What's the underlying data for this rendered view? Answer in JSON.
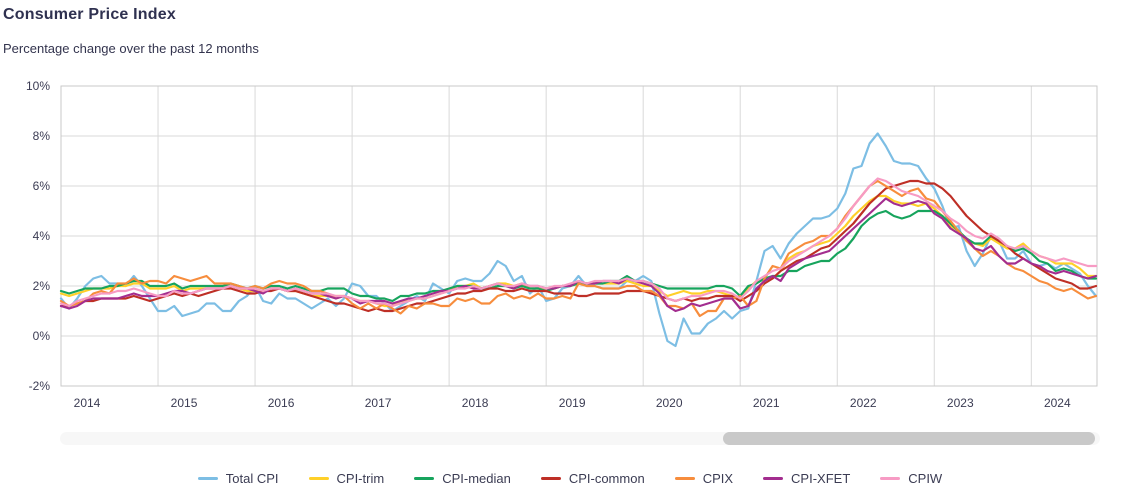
{
  "header": {
    "title": "Consumer Price Index",
    "subtitle": "Percentage change over the past 12 months"
  },
  "chart_data": {
    "type": "line",
    "title": "Consumer Price Index",
    "subtitle": "Percentage change over the past 12 months",
    "frequency": "monthly",
    "x_start": "2014-01",
    "x_end": "2024-09",
    "ylim": [
      -2,
      10
    ],
    "grid": true,
    "legend_position": "bottom",
    "grid_color": "#d9d9d9",
    "border_color": "#c9c9c9",
    "x_ticks": [
      "2014",
      "2015",
      "2016",
      "2017",
      "2018",
      "2019",
      "2020",
      "2021",
      "2022",
      "2023",
      "2024"
    ],
    "y_ticks": [
      {
        "value": 10,
        "label": "10%"
      },
      {
        "value": 8,
        "label": "8%"
      },
      {
        "value": 6,
        "label": "6%"
      },
      {
        "value": 4,
        "label": "4%"
      },
      {
        "value": 2,
        "label": "2%"
      },
      {
        "value": 0,
        "label": "0%"
      },
      {
        "value": -2,
        "label": "-2%"
      }
    ],
    "series": [
      {
        "name": "Total CPI",
        "color": "#7dbee4",
        "values": [
          1.5,
          1.1,
          1.5,
          2.0,
          2.3,
          2.4,
          2.1,
          2.1,
          2.0,
          2.4,
          2.0,
          1.5,
          1.0,
          1.0,
          1.2,
          0.8,
          0.9,
          1.0,
          1.3,
          1.3,
          1.0,
          1.0,
          1.4,
          1.6,
          2.0,
          1.4,
          1.3,
          1.7,
          1.5,
          1.5,
          1.3,
          1.1,
          1.3,
          1.5,
          1.2,
          1.5,
          2.1,
          2.0,
          1.6,
          1.6,
          1.3,
          1.0,
          1.2,
          1.4,
          1.6,
          1.4,
          2.1,
          1.9,
          1.7,
          2.2,
          2.3,
          2.2,
          2.2,
          2.5,
          3.0,
          2.8,
          2.2,
          2.4,
          1.7,
          2.0,
          1.4,
          1.5,
          1.9,
          2.0,
          2.4,
          2.0,
          2.0,
          1.9,
          1.9,
          1.9,
          2.2,
          2.2,
          2.4,
          2.2,
          0.9,
          -0.2,
          -0.4,
          0.7,
          0.1,
          0.1,
          0.5,
          0.7,
          1.0,
          0.7,
          1.0,
          1.1,
          2.2,
          3.4,
          3.6,
          3.1,
          3.7,
          4.1,
          4.4,
          4.7,
          4.7,
          4.8,
          5.1,
          5.7,
          6.7,
          6.8,
          7.7,
          8.1,
          7.6,
          7.0,
          6.9,
          6.9,
          6.8,
          6.3,
          5.9,
          5.2,
          4.3,
          4.4,
          3.4,
          2.8,
          3.3,
          4.0,
          3.8,
          3.1,
          3.1,
          3.4,
          2.9,
          2.8,
          2.9,
          2.7,
          2.9,
          2.7,
          2.5,
          2.0,
          1.6
        ]
      },
      {
        "name": "CPI-trim",
        "color": "#ffd029",
        "values": [
          1.7,
          1.6,
          1.7,
          1.8,
          1.9,
          1.9,
          1.9,
          2.0,
          2.0,
          2.1,
          2.1,
          1.9,
          1.9,
          1.9,
          2.0,
          1.8,
          1.9,
          1.9,
          1.9,
          1.9,
          1.9,
          2.0,
          1.9,
          1.8,
          1.8,
          1.8,
          1.9,
          1.9,
          1.8,
          1.8,
          1.7,
          1.6,
          1.6,
          1.6,
          1.6,
          1.6,
          1.5,
          1.4,
          1.4,
          1.3,
          1.2,
          1.2,
          1.4,
          1.4,
          1.5,
          1.5,
          1.6,
          1.7,
          1.8,
          2.0,
          2.0,
          2.1,
          1.9,
          2.0,
          2.1,
          2.1,
          2.0,
          2.1,
          1.9,
          1.9,
          1.9,
          1.9,
          2.0,
          2.0,
          2.1,
          2.1,
          2.1,
          2.1,
          2.1,
          2.1,
          2.2,
          2.1,
          2.0,
          2.0,
          1.8,
          1.6,
          1.7,
          1.8,
          1.7,
          1.7,
          1.8,
          1.8,
          1.7,
          1.6,
          1.5,
          1.9,
          2.2,
          2.3,
          2.3,
          2.6,
          3.1,
          3.3,
          3.4,
          3.6,
          3.7,
          3.8,
          4.1,
          4.4,
          4.8,
          5.1,
          5.4,
          5.6,
          5.6,
          5.4,
          5.3,
          5.3,
          5.2,
          5.3,
          5.1,
          4.8,
          4.4,
          4.2,
          3.8,
          3.7,
          3.6,
          3.9,
          3.7,
          3.5,
          3.5,
          3.7,
          3.4,
          3.2,
          3.1,
          2.9,
          2.9,
          2.9,
          2.7,
          2.4,
          2.4
        ]
      },
      {
        "name": "CPI-median",
        "color": "#17a45d",
        "values": [
          1.8,
          1.7,
          1.8,
          1.9,
          1.9,
          1.9,
          2.0,
          2.0,
          2.1,
          2.2,
          2.2,
          2.0,
          2.0,
          2.0,
          2.1,
          1.9,
          2.0,
          2.0,
          2.0,
          2.0,
          2.0,
          2.1,
          2.0,
          1.9,
          2.0,
          1.9,
          2.0,
          2.0,
          1.9,
          2.0,
          1.9,
          1.8,
          1.8,
          1.9,
          1.9,
          1.9,
          1.7,
          1.6,
          1.6,
          1.5,
          1.5,
          1.4,
          1.6,
          1.6,
          1.7,
          1.7,
          1.8,
          1.8,
          1.9,
          2.0,
          2.0,
          2.0,
          1.9,
          1.9,
          2.0,
          2.0,
          1.9,
          2.0,
          1.9,
          1.9,
          1.8,
          1.9,
          2.0,
          2.0,
          2.1,
          2.1,
          2.1,
          2.1,
          2.2,
          2.2,
          2.4,
          2.2,
          2.2,
          2.1,
          2.0,
          1.9,
          1.9,
          1.9,
          1.9,
          1.9,
          1.9,
          2.0,
          2.0,
          1.9,
          1.6,
          2.0,
          2.1,
          2.3,
          2.4,
          2.4,
          2.6,
          2.6,
          2.8,
          2.9,
          3.0,
          3.0,
          3.3,
          3.5,
          3.9,
          4.4,
          4.7,
          4.9,
          5.0,
          4.8,
          4.7,
          4.8,
          5.0,
          5.0,
          5.0,
          4.8,
          4.5,
          4.2,
          3.9,
          3.7,
          3.7,
          4.0,
          3.8,
          3.6,
          3.4,
          3.5,
          3.3,
          3.0,
          2.9,
          2.6,
          2.7,
          2.6,
          2.4,
          2.3,
          2.3
        ]
      },
      {
        "name": "CPI-common",
        "color": "#be2f26",
        "values": [
          1.2,
          1.2,
          1.3,
          1.4,
          1.4,
          1.5,
          1.5,
          1.5,
          1.5,
          1.6,
          1.5,
          1.4,
          1.5,
          1.6,
          1.7,
          1.6,
          1.7,
          1.6,
          1.7,
          1.8,
          1.9,
          1.9,
          1.8,
          1.7,
          1.7,
          1.8,
          1.8,
          1.9,
          1.8,
          1.8,
          1.7,
          1.6,
          1.5,
          1.4,
          1.3,
          1.3,
          1.2,
          1.1,
          1.0,
          1.1,
          1.0,
          1.0,
          1.1,
          1.2,
          1.3,
          1.3,
          1.4,
          1.5,
          1.6,
          1.7,
          1.7,
          1.8,
          1.8,
          1.9,
          1.9,
          1.8,
          1.8,
          1.9,
          1.8,
          1.8,
          1.8,
          1.7,
          1.7,
          1.7,
          1.6,
          1.6,
          1.7,
          1.7,
          1.7,
          1.7,
          1.8,
          1.8,
          1.8,
          1.7,
          1.6,
          1.5,
          1.4,
          1.5,
          1.4,
          1.5,
          1.5,
          1.6,
          1.6,
          1.6,
          1.4,
          1.6,
          1.8,
          2.1,
          2.3,
          2.6,
          2.8,
          3.0,
          3.1,
          3.3,
          3.5,
          3.6,
          3.9,
          4.2,
          4.5,
          4.9,
          5.3,
          5.6,
          5.9,
          6.0,
          6.1,
          6.2,
          6.2,
          6.1,
          6.1,
          5.9,
          5.6,
          5.2,
          4.8,
          4.5,
          4.2,
          4.0,
          3.8,
          3.6,
          3.3,
          3.1,
          2.9,
          2.7,
          2.5,
          2.3,
          2.2,
          2.1,
          1.9,
          1.9,
          2.0
        ]
      },
      {
        "name": "CPIX",
        "color": "#f78d3d",
        "values": [
          1.4,
          1.2,
          1.3,
          1.4,
          1.7,
          1.8,
          1.7,
          2.1,
          2.1,
          2.3,
          2.1,
          2.2,
          2.2,
          2.1,
          2.4,
          2.3,
          2.2,
          2.3,
          2.4,
          2.1,
          2.1,
          2.1,
          2.0,
          1.9,
          2.0,
          1.9,
          2.1,
          2.2,
          2.1,
          2.1,
          2.0,
          1.8,
          1.8,
          1.7,
          1.5,
          1.6,
          1.3,
          1.1,
          1.3,
          1.1,
          1.3,
          1.1,
          0.9,
          1.2,
          1.1,
          1.3,
          1.3,
          1.2,
          1.2,
          1.5,
          1.4,
          1.5,
          1.3,
          1.3,
          1.6,
          1.7,
          1.5,
          1.6,
          1.5,
          1.7,
          1.5,
          1.5,
          1.6,
          1.5,
          2.1,
          2.0,
          2.0,
          1.9,
          1.9,
          1.9,
          2.0,
          2.0,
          1.8,
          1.8,
          1.6,
          1.2,
          1.2,
          1.1,
          1.3,
          0.8,
          1.0,
          1.0,
          1.5,
          1.5,
          1.6,
          1.2,
          1.4,
          2.3,
          2.8,
          2.7,
          3.3,
          3.5,
          3.7,
          3.8,
          4.0,
          4.0,
          4.3,
          4.8,
          5.2,
          5.6,
          6.0,
          6.2,
          6.0,
          5.8,
          5.6,
          5.8,
          5.9,
          5.5,
          5.4,
          5.0,
          4.6,
          4.2,
          3.8,
          3.5,
          3.2,
          3.4,
          3.2,
          2.9,
          2.7,
          2.6,
          2.4,
          2.2,
          2.1,
          1.9,
          1.8,
          1.9,
          1.7,
          1.5,
          1.6
        ]
      },
      {
        "name": "CPI-XFET",
        "color": "#a32d8f",
        "values": [
          1.2,
          1.1,
          1.2,
          1.4,
          1.5,
          1.5,
          1.5,
          1.5,
          1.6,
          1.7,
          1.6,
          1.6,
          1.6,
          1.7,
          1.8,
          1.8,
          1.7,
          1.8,
          1.9,
          1.9,
          1.9,
          2.0,
          1.9,
          1.9,
          1.8,
          1.7,
          1.9,
          1.9,
          1.8,
          1.9,
          1.8,
          1.7,
          1.7,
          1.6,
          1.5,
          1.6,
          1.5,
          1.3,
          1.4,
          1.4,
          1.4,
          1.3,
          1.4,
          1.5,
          1.5,
          1.6,
          1.7,
          1.8,
          1.8,
          1.9,
          2.0,
          1.9,
          1.9,
          2.0,
          2.1,
          2.0,
          1.9,
          2.1,
          2.0,
          2.0,
          1.9,
          1.9,
          2.0,
          2.0,
          2.2,
          2.1,
          2.1,
          2.2,
          2.2,
          2.1,
          2.3,
          2.2,
          2.1,
          2.0,
          1.7,
          1.2,
          1.0,
          1.1,
          1.3,
          1.2,
          1.3,
          1.4,
          1.5,
          1.5,
          1.1,
          1.2,
          1.9,
          2.2,
          2.4,
          2.2,
          2.7,
          2.9,
          3.1,
          3.2,
          3.3,
          3.4,
          3.7,
          4.0,
          4.3,
          4.6,
          4.9,
          5.2,
          5.5,
          5.3,
          5.2,
          5.3,
          5.4,
          5.3,
          4.9,
          4.7,
          4.3,
          4.1,
          3.9,
          3.5,
          3.4,
          3.6,
          3.2,
          2.9,
          2.9,
          3.1,
          2.9,
          2.8,
          2.6,
          2.5,
          2.6,
          2.5,
          2.4,
          2.3,
          2.4
        ]
      },
      {
        "name": "CPIW",
        "color": "#f79bc4",
        "values": [
          1.3,
          1.2,
          1.4,
          1.5,
          1.6,
          1.7,
          1.7,
          1.8,
          1.8,
          1.9,
          1.8,
          1.7,
          1.6,
          1.6,
          1.8,
          1.7,
          1.7,
          1.8,
          1.9,
          1.9,
          1.9,
          2.0,
          1.9,
          1.9,
          1.9,
          1.8,
          1.9,
          1.9,
          1.8,
          1.9,
          1.8,
          1.7,
          1.7,
          1.7,
          1.6,
          1.6,
          1.5,
          1.4,
          1.4,
          1.3,
          1.3,
          1.2,
          1.3,
          1.4,
          1.5,
          1.5,
          1.6,
          1.7,
          1.8,
          1.9,
          1.9,
          2.0,
          1.9,
          2.0,
          2.1,
          2.0,
          2.0,
          2.1,
          2.0,
          2.0,
          1.9,
          2.0,
          2.0,
          2.1,
          2.2,
          2.1,
          2.2,
          2.2,
          2.2,
          2.2,
          2.3,
          2.2,
          2.2,
          2.1,
          1.9,
          1.5,
          1.4,
          1.5,
          1.6,
          1.6,
          1.7,
          1.8,
          1.8,
          1.7,
          1.5,
          1.8,
          2.2,
          2.4,
          2.6,
          2.7,
          3.0,
          3.2,
          3.4,
          3.6,
          3.8,
          4.0,
          4.3,
          4.7,
          5.2,
          5.6,
          6.0,
          6.3,
          6.2,
          6.0,
          5.8,
          5.7,
          5.6,
          5.4,
          5.2,
          5.0,
          4.7,
          4.5,
          4.2,
          4.0,
          3.9,
          4.1,
          3.9,
          3.6,
          3.5,
          3.6,
          3.4,
          3.2,
          3.1,
          3.0,
          3.1,
          3.0,
          2.9,
          2.8,
          2.8
        ]
      }
    ]
  }
}
